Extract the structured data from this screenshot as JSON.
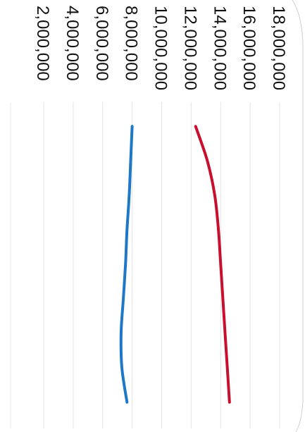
{
  "chart_data": {
    "type": "line",
    "orientation": "rotated-90-clockwise",
    "title": "",
    "xlabel": "",
    "ylabel": "",
    "y_ticks": [
      2000000,
      4000000,
      6000000,
      8000000,
      10000000,
      12000000,
      14000000,
      16000000,
      18000000
    ],
    "y_tick_labels": [
      "2,000,000",
      "4,000,000",
      "6,000,000",
      "8,000,000",
      "10,000,000",
      "12,000,000",
      "14,000,000",
      "16,000,000",
      "18,000,000"
    ],
    "ylim": [
      0,
      18000000
    ],
    "x": [
      0,
      1,
      2,
      3,
      4,
      5,
      6,
      7,
      8
    ],
    "xlim": [
      -0.6,
      8.6
    ],
    "grid": true,
    "series": [
      {
        "color": "#c8102e",
        "values": [
          12300000,
          13100000,
          13600000,
          13850000,
          14000000,
          14150000,
          14300000,
          14450000,
          14600000
        ]
      },
      {
        "color": "#1f77c8",
        "values": [
          8000000,
          7900000,
          7800000,
          7650000,
          7550000,
          7400000,
          7250000,
          7300000,
          7650000
        ]
      }
    ]
  }
}
